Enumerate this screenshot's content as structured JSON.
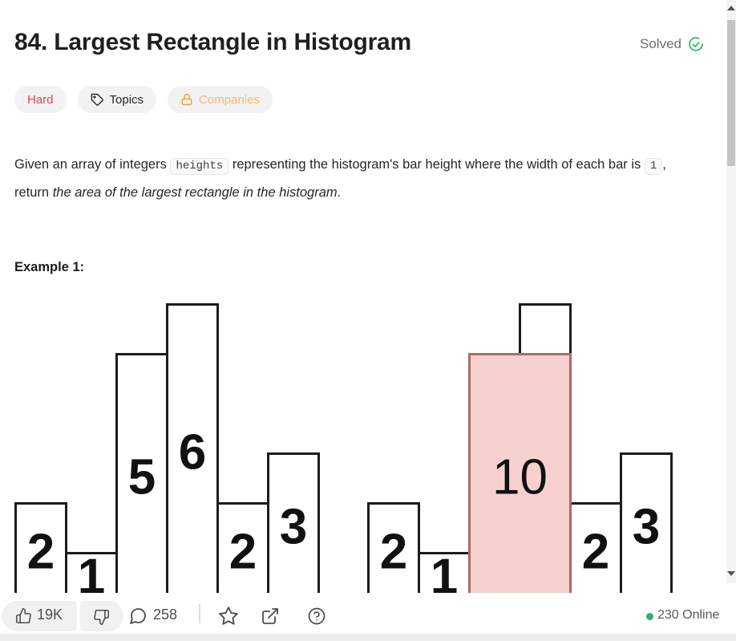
{
  "header": {
    "title": "84. Largest Rectangle in Histogram",
    "solved_label": "Solved"
  },
  "tags": {
    "difficulty": "Hard",
    "topics": "Topics",
    "companies": "Companies"
  },
  "description": {
    "p1": "Given an array of integers ",
    "code1": "heights",
    "p2": " representing the histogram's bar height where the width of each bar is ",
    "code2": "1",
    "p3": ", return ",
    "italic": "the area of the largest rectangle in the histogram",
    "p4": "."
  },
  "example": {
    "label": "Example 1:"
  },
  "figure": {
    "heights": [
      2,
      1,
      5,
      6,
      2,
      3
    ],
    "histograms": [
      {
        "name": "input-histogram",
        "bars": [
          {
            "h": 2,
            "label": "2"
          },
          {
            "h": 1,
            "label": "1"
          },
          {
            "h": 5,
            "label": "5"
          },
          {
            "h": 6,
            "label": "6"
          },
          {
            "h": 2,
            "label": "2"
          },
          {
            "h": 3,
            "label": "3"
          }
        ]
      },
      {
        "name": "solution-histogram",
        "bars": [
          {
            "h": 2,
            "label": "2"
          },
          {
            "h": 1,
            "label": "1"
          },
          {
            "h": 5,
            "label": ""
          },
          {
            "h": 6,
            "label": ""
          },
          {
            "h": 2,
            "label": "2"
          },
          {
            "h": 3,
            "label": "3"
          }
        ],
        "highlight": {
          "start": 2,
          "span": 2,
          "height": 5,
          "label": "10",
          "fill": "#f7d0d0",
          "border": "#ab6a6a"
        }
      }
    ]
  },
  "footer": {
    "likes": "19K",
    "comments": "258",
    "online": "230 Online"
  },
  "icons": {
    "solved": "check-circle-icon",
    "topics": "tag-icon",
    "companies": "lock-icon",
    "like": "thumbs-up-icon",
    "dislike": "thumbs-down-icon",
    "comments": "comment-bubble-icon",
    "favorite": "star-icon",
    "share": "share-icon",
    "help": "question-mark-icon",
    "online": "green-dot"
  },
  "colors": {
    "hard_red": "#e8414c",
    "companies_amber": "#e9a43d",
    "solved_green": "#2bb357",
    "online_green": "#28b463",
    "highlight_fill": "#f7d0d0",
    "highlight_border": "#ab6a6a"
  }
}
